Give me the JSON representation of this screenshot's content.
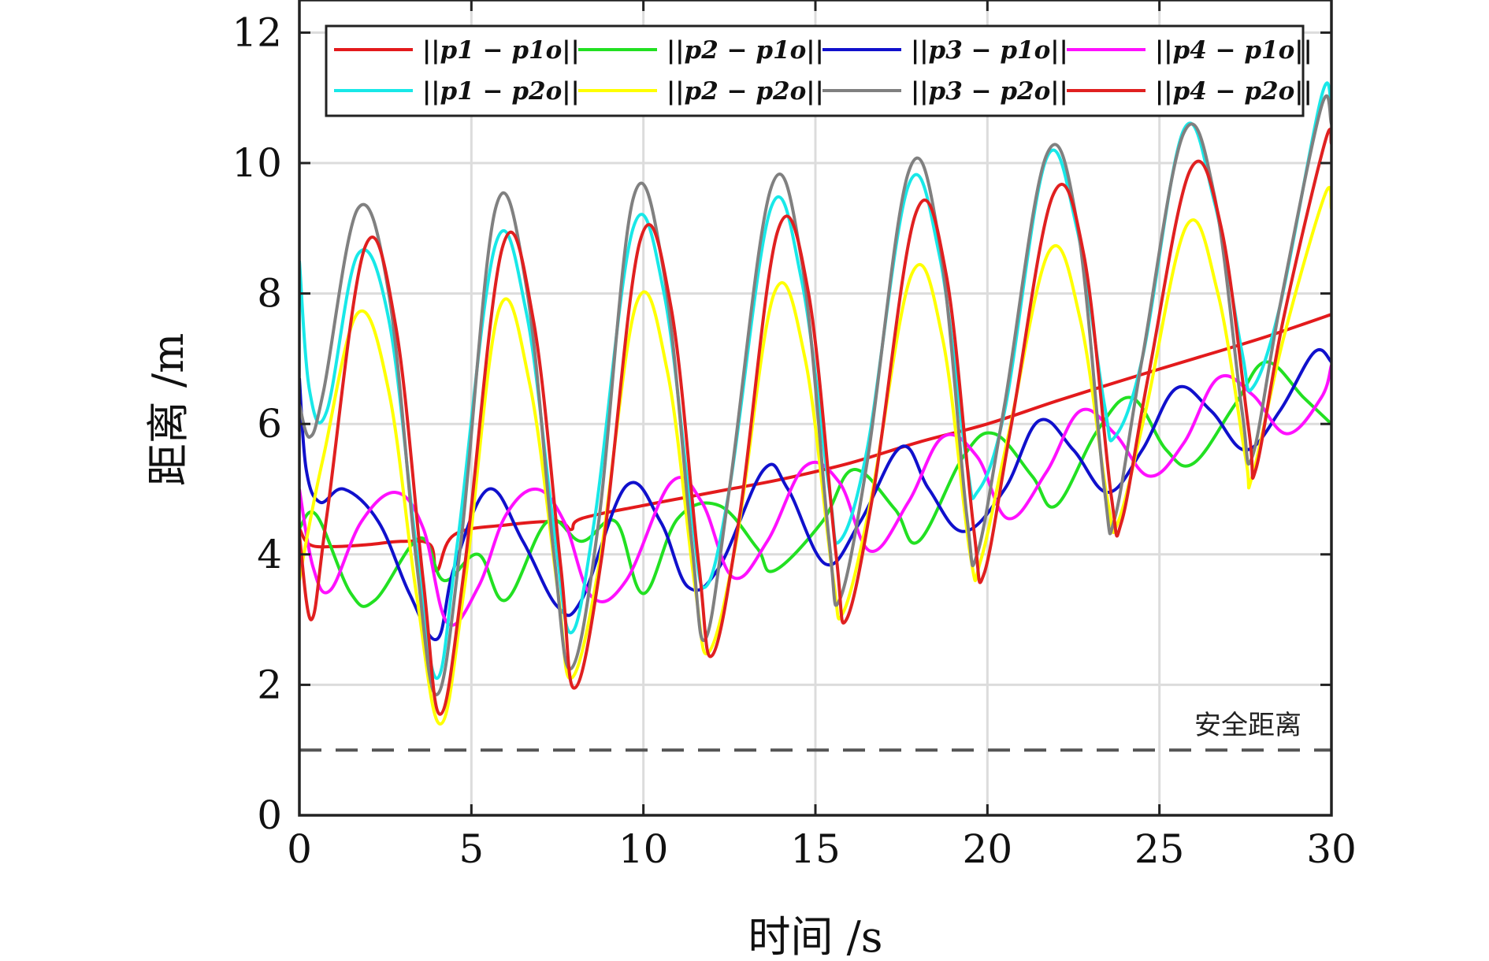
{
  "chart_data": {
    "type": "line",
    "xlabel": "时间 /s",
    "ylabel": "距离 /m",
    "xlim": [
      0,
      30
    ],
    "ylim": [
      0,
      12.5
    ],
    "xticks": [
      0,
      5,
      10,
      15,
      20,
      25,
      30
    ],
    "yticks": [
      0,
      2,
      4,
      6,
      8,
      10,
      12
    ],
    "grid": true,
    "legend_position": "top",
    "legend_columns": 4,
    "annotation": {
      "text": "安全距离",
      "y": 1.0,
      "style": "dashed",
      "color": "#555555"
    },
    "series": [
      {
        "name": "||p1 − p1o||",
        "color": "#e31a1c",
        "x": [
          0,
          0.3,
          1,
          2,
          3,
          3.8,
          4.0,
          4.5,
          6,
          7.5,
          7.9,
          8.2,
          10,
          11.7,
          12.5,
          14,
          16,
          18,
          20,
          22,
          24,
          26,
          28,
          30
        ],
        "y": [
          4.4,
          4.15,
          4.12,
          4.15,
          4.2,
          4.15,
          3.75,
          4.3,
          4.45,
          4.5,
          4.38,
          4.55,
          4.75,
          4.92,
          5.0,
          5.15,
          5.4,
          5.72,
          6.0,
          6.35,
          6.68,
          7.0,
          7.32,
          7.68
        ]
      },
      {
        "name": "||p2 − p1o||",
        "color": "#22e022",
        "x": [
          0,
          0.5,
          1.5,
          2.2,
          3.5,
          4.2,
          5.2,
          6,
          7.2,
          8.2,
          9.2,
          10,
          11.0,
          12.2,
          13.3,
          13.8,
          15.2,
          16.1,
          17.3,
          18.0,
          19.3,
          20.2,
          21.3,
          22.0,
          23.2,
          24.2,
          25.2,
          26.0,
          27.2,
          28.1,
          29.2,
          30
        ],
        "y": [
          4.4,
          4.6,
          3.4,
          3.3,
          4.25,
          3.6,
          4.0,
          3.3,
          4.5,
          4.2,
          4.5,
          3.4,
          4.55,
          4.75,
          4.1,
          3.75,
          4.5,
          5.3,
          4.7,
          4.2,
          5.5,
          5.85,
          5.2,
          4.75,
          5.9,
          6.4,
          5.6,
          5.4,
          6.3,
          6.95,
          6.4,
          6.0
        ]
      },
      {
        "name": "||p3 − p1o||",
        "color": "#1010cc",
        "x": [
          0,
          0.2,
          0.6,
          1.3,
          2.3,
          3.2,
          4.0,
          4.5,
          5.5,
          6.5,
          7.5,
          8.2,
          9.5,
          10.5,
          11.3,
          12.2,
          13.5,
          14.2,
          15.3,
          16.3,
          17.5,
          18.3,
          19.3,
          20.5,
          21.5,
          22.5,
          23.5,
          24.5,
          25.5,
          26.5,
          27.5,
          28.5,
          29.5,
          30
        ],
        "y": [
          6.7,
          5.3,
          4.8,
          5.0,
          4.5,
          3.4,
          2.7,
          3.8,
          5.0,
          4.2,
          3.2,
          3.3,
          5.05,
          4.5,
          3.5,
          3.8,
          5.3,
          5.0,
          3.85,
          4.5,
          5.65,
          5.0,
          4.35,
          5.0,
          6.05,
          5.6,
          4.95,
          5.6,
          6.55,
          6.2,
          5.6,
          6.2,
          7.1,
          6.95
        ]
      },
      {
        "name": "||p4 − p1o||",
        "color": "#ff10ff",
        "x": [
          0,
          0.4,
          0.9,
          1.8,
          2.8,
          3.6,
          4.3,
          5.2,
          6.0,
          6.9,
          7.7,
          8.5,
          9.5,
          10.8,
          11.7,
          12.6,
          13.6,
          14.7,
          15.7,
          16.6,
          17.7,
          18.7,
          19.7,
          20.6,
          21.7,
          22.7,
          23.7,
          24.7,
          25.7,
          26.7,
          27.7,
          28.7,
          29.7,
          30
        ],
        "y": [
          5.0,
          3.8,
          3.45,
          4.5,
          4.95,
          4.4,
          2.95,
          3.5,
          4.6,
          5.0,
          4.5,
          3.35,
          3.6,
          5.1,
          4.8,
          3.65,
          4.2,
          5.35,
          5.1,
          4.05,
          4.8,
          5.8,
          5.5,
          4.55,
          5.25,
          6.2,
          5.85,
          5.2,
          5.7,
          6.7,
          6.45,
          5.85,
          6.4,
          6.9
        ]
      },
      {
        "name": "||p1 − p2o||",
        "color": "#18e8e8",
        "x": [
          0,
          0.3,
          0.8,
          1.7,
          2.6,
          3.4,
          4.0,
          4.6,
          5.7,
          6.6,
          7.4,
          7.9,
          8.6,
          9.7,
          10.6,
          11.4,
          11.8,
          12.5,
          13.7,
          14.6,
          15.4,
          15.7,
          16.5,
          17.7,
          18.6,
          19.4,
          19.7,
          20.5,
          21.7,
          22.6,
          23.4,
          23.7,
          24.5,
          25.7,
          26.6,
          27.4,
          27.7,
          28.5,
          29.7,
          30
        ],
        "y": [
          8.5,
          6.5,
          6.2,
          8.6,
          7.6,
          4.1,
          2.1,
          4.2,
          8.75,
          7.7,
          4.4,
          2.8,
          4.6,
          9.0,
          8.0,
          4.6,
          3.5,
          5.0,
          9.3,
          8.2,
          5.0,
          4.2,
          5.6,
          9.65,
          8.6,
          5.4,
          4.95,
          6.2,
          10.05,
          9.0,
          6.3,
          5.8,
          7.0,
          10.5,
          9.4,
          7.1,
          6.55,
          7.8,
          11.0,
          10.9
        ]
      },
      {
        "name": "||p2 − p2o||",
        "color": "#ffff00",
        "x": [
          0,
          0.2,
          0.7,
          1.7,
          2.6,
          3.4,
          4.1,
          4.8,
          5.8,
          6.7,
          7.5,
          7.9,
          8.7,
          9.8,
          10.7,
          11.5,
          11.9,
          12.7,
          13.8,
          14.7,
          15.5,
          15.8,
          16.6,
          17.8,
          18.7,
          19.5,
          19.8,
          20.6,
          21.8,
          22.7,
          23.5,
          23.8,
          24.6,
          25.8,
          26.7,
          27.5,
          27.7,
          28.6,
          29.8,
          30
        ],
        "y": [
          3.6,
          4.2,
          5.5,
          7.7,
          6.5,
          3.4,
          1.4,
          3.5,
          7.75,
          6.6,
          3.5,
          2.1,
          3.8,
          7.85,
          6.8,
          3.5,
          2.5,
          4.2,
          8.0,
          7.0,
          3.7,
          3.1,
          4.8,
          8.3,
          7.3,
          4.0,
          3.9,
          5.8,
          8.65,
          7.6,
          4.8,
          4.5,
          6.2,
          9.05,
          8.0,
          5.5,
          5.2,
          7.3,
          9.5,
          9.3
        ]
      },
      {
        "name": "||p3 − p2o||",
        "color": "#808080",
        "x": [
          0,
          0.3,
          0.7,
          1.7,
          2.6,
          3.4,
          4.0,
          4.7,
          5.7,
          6.6,
          7.4,
          7.9,
          8.7,
          9.7,
          10.6,
          11.4,
          11.8,
          12.5,
          13.7,
          14.6,
          15.4,
          15.7,
          16.5,
          17.7,
          18.6,
          19.4,
          19.7,
          20.5,
          21.7,
          22.6,
          23.4,
          23.7,
          24.5,
          25.7,
          26.6,
          27.4,
          27.7,
          28.5,
          29.7,
          30
        ],
        "y": [
          6.3,
          5.8,
          6.5,
          9.3,
          8.0,
          3.9,
          1.85,
          4.2,
          9.3,
          8.1,
          4.0,
          2.25,
          4.5,
          9.45,
          8.3,
          4.2,
          2.7,
          5.0,
          9.6,
          8.5,
          4.2,
          3.3,
          5.4,
          9.85,
          8.8,
          4.6,
          4.0,
          6.3,
          10.1,
          9.1,
          5.0,
          4.55,
          7.0,
          10.45,
          9.5,
          6.2,
          5.5,
          7.8,
          10.85,
          10.6
        ]
      },
      {
        "name": "||p4 − p2o||",
        "color": "#e02020",
        "x": [
          0,
          0.35,
          0.8,
          1.9,
          2.8,
          3.6,
          4.1,
          4.8,
          5.9,
          6.8,
          7.6,
          8.0,
          8.8,
          9.9,
          10.8,
          11.6,
          12.0,
          12.8,
          13.9,
          14.8,
          15.6,
          15.9,
          16.7,
          17.9,
          18.8,
          19.6,
          19.9,
          20.7,
          21.9,
          22.8,
          23.6,
          23.9,
          24.7,
          25.9,
          26.8,
          27.6,
          27.8,
          28.6,
          29.8,
          30
        ],
        "y": [
          4.3,
          3.0,
          4.6,
          8.7,
          7.5,
          3.6,
          1.55,
          3.8,
          8.7,
          7.6,
          3.8,
          1.95,
          4.0,
          8.8,
          7.8,
          3.9,
          2.45,
          4.6,
          8.95,
          8.0,
          4.0,
          3.0,
          5.0,
          9.2,
          8.3,
          4.4,
          3.7,
          6.0,
          9.5,
          8.6,
          4.9,
          4.5,
          6.8,
          9.9,
          9.0,
          5.9,
          5.3,
          7.6,
          10.3,
          10.3
        ]
      }
    ]
  }
}
